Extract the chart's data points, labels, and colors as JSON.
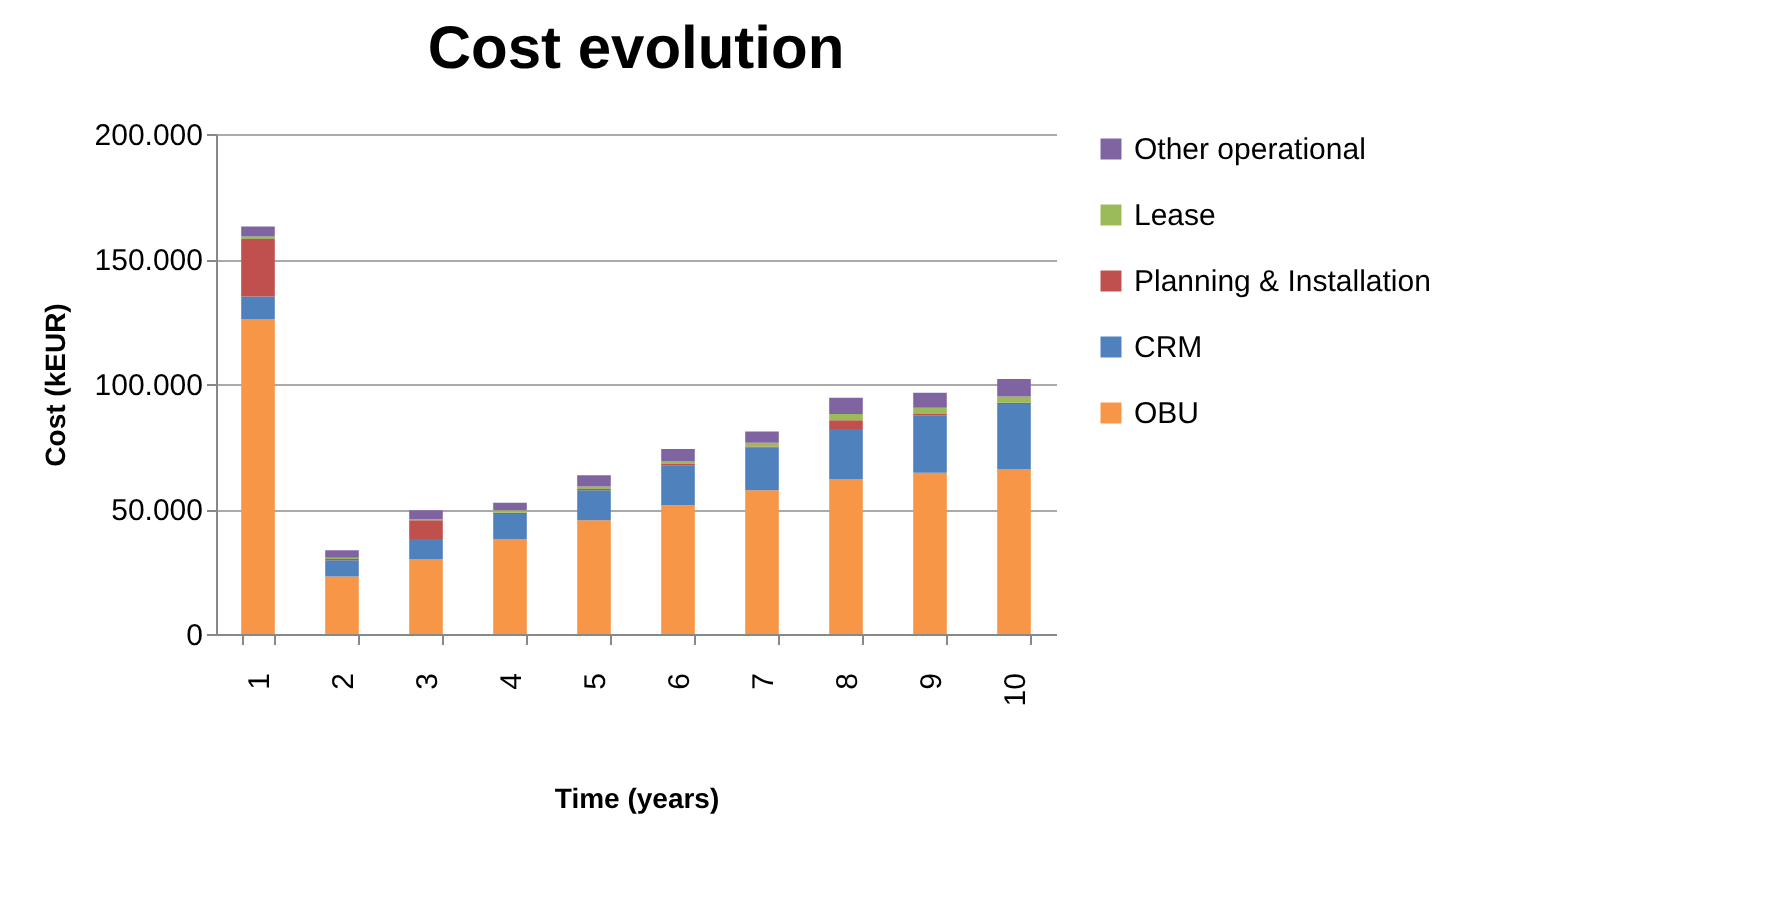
{
  "chart_data": {
    "type": "bar",
    "title": "Cost evolution",
    "xlabel": "Time (years)",
    "ylabel": "Cost (kEUR)",
    "categories": [
      "1",
      "2",
      "3",
      "4",
      "5",
      "6",
      "7",
      "8",
      "9",
      "10"
    ],
    "stacked": true,
    "grid": "y",
    "legend": "right",
    "ylim": [
      0,
      200000
    ],
    "yticks": [
      {
        "value": 0,
        "label": "0"
      },
      {
        "value": 50000,
        "label": "50.000"
      },
      {
        "value": 100000,
        "label": "100.000"
      },
      {
        "value": 150000,
        "label": "150.000"
      },
      {
        "value": 200000,
        "label": "200.000"
      }
    ],
    "series": [
      {
        "name": "OBU",
        "color": "#f79646",
        "values": [
          126000,
          23000,
          30000,
          38000,
          45500,
          51500,
          57500,
          62000,
          64500,
          66000
        ]
      },
      {
        "name": "CRM",
        "color": "#4f81bd",
        "values": [
          9000,
          6500,
          8000,
          10000,
          12000,
          16000,
          17000,
          20000,
          23000,
          26000
        ]
      },
      {
        "name": "Planning & Installation",
        "color": "#c0504d",
        "values": [
          23000,
          500,
          7500,
          500,
          500,
          500,
          500,
          3500,
          500,
          500
        ]
      },
      {
        "name": "Lease",
        "color": "#9bbb59",
        "values": [
          1000,
          500,
          500,
          1000,
          1000,
          1000,
          1500,
          2500,
          2500,
          2500
        ]
      },
      {
        "name": "Other operational",
        "color": "#8064a2",
        "values": [
          4000,
          3000,
          3500,
          3000,
          4500,
          5000,
          4500,
          6500,
          6000,
          7000
        ]
      }
    ]
  }
}
